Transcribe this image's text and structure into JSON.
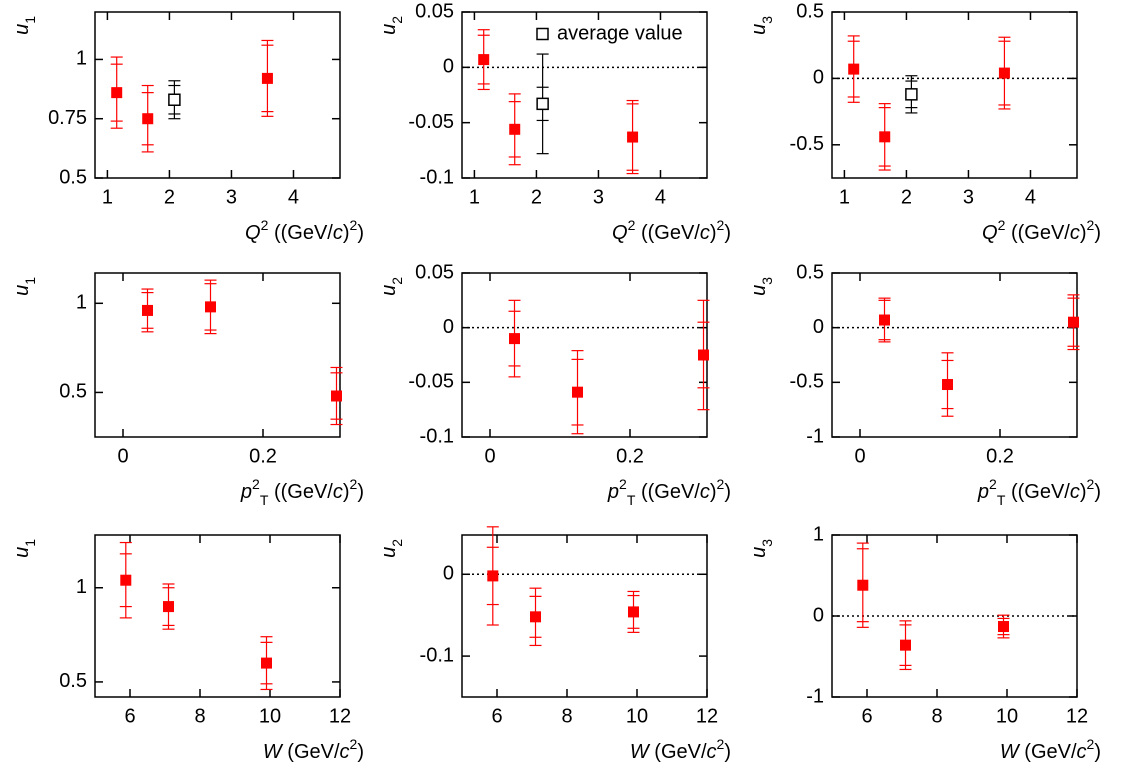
{
  "chart_data": [
    {
      "type": "errorbar",
      "xlabel": [
        [
          "Q",
          "i"
        ],
        [
          "2",
          "sup"
        ],
        [
          " ((GeV/",
          ""
        ],
        [
          "c",
          "i"
        ],
        [
          ")",
          ""
        ],
        [
          "2",
          "sup"
        ],
        [
          ")",
          ""
        ]
      ],
      "ylabel": [
        [
          "u",
          "i"
        ],
        [
          "1",
          "sub"
        ]
      ],
      "xlim": [
        0.8,
        4.75
      ],
      "ylim": [
        0.5,
        1.2
      ],
      "xticks": [
        1,
        2,
        3,
        4
      ],
      "yticks": [
        0.5,
        0.75,
        1
      ],
      "zero_line": false,
      "series": [
        {
          "color": "#ff0000",
          "marker": "filled",
          "x": [
            1.15,
            1.65,
            3.58
          ],
          "values": [
            0.86,
            0.75,
            0.92
          ],
          "stat_errors": [
            0.12,
            0.11,
            0.14
          ],
          "errors": [
            0.15,
            0.14,
            0.16
          ]
        },
        {
          "color": "#000000",
          "marker": "open",
          "x": [
            2.08
          ],
          "values": [
            0.83
          ],
          "stat_errors": [
            0.06
          ],
          "errors": [
            0.08
          ]
        }
      ]
    },
    {
      "type": "errorbar",
      "xlabel": [
        [
          "Q",
          "i"
        ],
        [
          "2",
          "sup"
        ],
        [
          " ((GeV/",
          ""
        ],
        [
          "c",
          "i"
        ],
        [
          ")",
          ""
        ],
        [
          "2",
          "sup"
        ],
        [
          ")",
          ""
        ]
      ],
      "ylabel": [
        [
          "u",
          "i"
        ],
        [
          "2",
          "sub"
        ]
      ],
      "xlim": [
        0.8,
        4.75
      ],
      "ylim": [
        -0.1,
        0.05
      ],
      "xticks": [
        1,
        2,
        3,
        4
      ],
      "yticks": [
        -0.1,
        -0.05,
        0,
        0.05
      ],
      "zero_line": true,
      "legend": "upper right",
      "series": [
        {
          "color": "#ff0000",
          "marker": "filled",
          "x": [
            1.15,
            1.65,
            3.55
          ],
          "values": [
            0.007,
            -0.056,
            -0.063
          ],
          "stat_errors": [
            0.022,
            0.025,
            0.03
          ],
          "errors": [
            0.027,
            0.032,
            0.033
          ]
        },
        {
          "name": "average value",
          "color": "#000000",
          "marker": "open",
          "x": [
            2.1
          ],
          "values": [
            -0.033
          ],
          "stat_errors": [
            0.015
          ],
          "errors": [
            0.045
          ]
        }
      ]
    },
    {
      "type": "errorbar",
      "xlabel": [
        [
          "Q",
          "i"
        ],
        [
          "2",
          "sup"
        ],
        [
          " ((GeV/",
          ""
        ],
        [
          "c",
          "i"
        ],
        [
          ")",
          ""
        ],
        [
          "2",
          "sup"
        ],
        [
          ")",
          ""
        ]
      ],
      "ylabel": [
        [
          "u",
          "i"
        ],
        [
          "3",
          "sub"
        ]
      ],
      "xlim": [
        0.8,
        4.75
      ],
      "ylim": [
        -0.75,
        0.5
      ],
      "xticks": [
        1,
        2,
        3,
        4
      ],
      "yticks": [
        -0.5,
        0,
        0.5
      ],
      "zero_line": true,
      "series": [
        {
          "color": "#ff0000",
          "marker": "filled",
          "x": [
            1.15,
            1.65,
            3.58
          ],
          "values": [
            0.07,
            -0.44,
            0.04
          ],
          "stat_errors": [
            0.21,
            0.22,
            0.24
          ],
          "errors": [
            0.25,
            0.25,
            0.27
          ]
        },
        {
          "color": "#000000",
          "marker": "open",
          "x": [
            2.08
          ],
          "values": [
            -0.12
          ],
          "stat_errors": [
            0.1
          ],
          "errors": [
            0.14
          ]
        }
      ]
    },
    {
      "type": "errorbar",
      "xlabel": [
        [
          "p",
          "i"
        ],
        [
          "2",
          "sup"
        ],
        [
          "T",
          "sub"
        ],
        [
          " ((GeV/",
          ""
        ],
        [
          "c",
          "i"
        ],
        [
          ")",
          ""
        ],
        [
          "2",
          "sup"
        ],
        [
          ")",
          ""
        ]
      ],
      "ylabel": [
        [
          "u",
          "i"
        ],
        [
          "1",
          "sub"
        ]
      ],
      "xlim": [
        -0.04,
        0.31
      ],
      "ylim": [
        0.25,
        1.17
      ],
      "xticks": [
        0,
        0.2
      ],
      "yticks": [
        0.5,
        1
      ],
      "zero_line": false,
      "series": [
        {
          "color": "#ff0000",
          "marker": "filled",
          "x": [
            0.035,
            0.125,
            0.305
          ],
          "values": [
            0.96,
            0.98,
            0.48
          ],
          "stat_errors": [
            0.1,
            0.13,
            0.13
          ],
          "errors": [
            0.12,
            0.15,
            0.16
          ]
        }
      ]
    },
    {
      "type": "errorbar",
      "xlabel": [
        [
          "p",
          "i"
        ],
        [
          "2",
          "sup"
        ],
        [
          "T",
          "sub"
        ],
        [
          " ((GeV/",
          ""
        ],
        [
          "c",
          "i"
        ],
        [
          ")",
          ""
        ],
        [
          "2",
          "sup"
        ],
        [
          ")",
          ""
        ]
      ],
      "ylabel": [
        [
          "u",
          "i"
        ],
        [
          "2",
          "sub"
        ]
      ],
      "xlim": [
        -0.04,
        0.31
      ],
      "ylim": [
        -0.1,
        0.05
      ],
      "xticks": [
        0,
        0.2
      ],
      "yticks": [
        -0.1,
        -0.05,
        0,
        0.05
      ],
      "zero_line": true,
      "series": [
        {
          "color": "#ff0000",
          "marker": "filled",
          "x": [
            0.035,
            0.125,
            0.305
          ],
          "values": [
            -0.01,
            -0.059,
            -0.025
          ],
          "stat_errors": [
            0.025,
            0.03,
            0.03
          ],
          "errors": [
            0.035,
            0.038,
            0.05
          ]
        }
      ]
    },
    {
      "type": "errorbar",
      "xlabel": [
        [
          "p",
          "i"
        ],
        [
          "2",
          "sup"
        ],
        [
          "T",
          "sub"
        ],
        [
          " ((GeV/",
          ""
        ],
        [
          "c",
          "i"
        ],
        [
          ")",
          ""
        ],
        [
          "2",
          "sup"
        ],
        [
          ")",
          ""
        ]
      ],
      "ylabel": [
        [
          "u",
          "i"
        ],
        [
          "3",
          "sub"
        ]
      ],
      "xlim": [
        -0.04,
        0.31
      ],
      "ylim": [
        -1,
        0.5
      ],
      "xticks": [
        0,
        0.2
      ],
      "yticks": [
        -1,
        -0.5,
        0,
        0.5
      ],
      "zero_line": true,
      "series": [
        {
          "color": "#ff0000",
          "marker": "filled",
          "x": [
            0.035,
            0.125,
            0.305
          ],
          "values": [
            0.07,
            -0.52,
            0.05
          ],
          "stat_errors": [
            0.18,
            0.22,
            0.22
          ],
          "errors": [
            0.2,
            0.29,
            0.25
          ]
        }
      ]
    },
    {
      "type": "errorbar",
      "xlabel": [
        [
          "W",
          "i"
        ],
        [
          " (GeV/",
          ""
        ],
        [
          "c",
          "i"
        ],
        [
          "2",
          "sup"
        ],
        [
          ")",
          ""
        ]
      ],
      "ylabel": [
        [
          "u",
          "i"
        ],
        [
          "1",
          "sub"
        ]
      ],
      "xlim": [
        5,
        12
      ],
      "ylim": [
        0.42,
        1.28
      ],
      "xticks": [
        6,
        8,
        10,
        12
      ],
      "yticks": [
        0.5,
        1
      ],
      "zero_line": false,
      "series": [
        {
          "color": "#ff0000",
          "marker": "filled",
          "x": [
            5.88,
            7.1,
            9.9
          ],
          "values": [
            1.04,
            0.9,
            0.6
          ],
          "stat_errors": [
            0.14,
            0.1,
            0.11
          ],
          "errors": [
            0.2,
            0.12,
            0.14
          ]
        }
      ]
    },
    {
      "type": "errorbar",
      "xlabel": [
        [
          "W",
          "i"
        ],
        [
          " (GeV/",
          ""
        ],
        [
          "c",
          "i"
        ],
        [
          "2",
          "sup"
        ],
        [
          ")",
          ""
        ]
      ],
      "ylabel": [
        [
          "u",
          "i"
        ],
        [
          "2",
          "sub"
        ]
      ],
      "xlim": [
        5,
        12
      ],
      "ylim": [
        -0.15,
        0.048
      ],
      "xticks": [
        6,
        8,
        10,
        12
      ],
      "yticks": [
        -0.1,
        0
      ],
      "zero_line": true,
      "series": [
        {
          "color": "#ff0000",
          "marker": "filled",
          "x": [
            5.88,
            7.1,
            9.9
          ],
          "values": [
            -0.002,
            -0.052,
            -0.046
          ],
          "stat_errors": [
            0.035,
            0.025,
            0.02
          ],
          "errors": [
            0.06,
            0.035,
            0.025
          ]
        }
      ]
    },
    {
      "type": "errorbar",
      "xlabel": [
        [
          "W",
          "i"
        ],
        [
          " (GeV/",
          ""
        ],
        [
          "c",
          "i"
        ],
        [
          "2",
          "sup"
        ],
        [
          ")",
          ""
        ]
      ],
      "ylabel": [
        [
          "u",
          "i"
        ],
        [
          "3",
          "sub"
        ]
      ],
      "xlim": [
        5,
        12
      ],
      "ylim": [
        -1,
        1
      ],
      "xticks": [
        6,
        8,
        10,
        12
      ],
      "yticks": [
        -1,
        0,
        1
      ],
      "zero_line": true,
      "series": [
        {
          "color": "#ff0000",
          "marker": "filled",
          "x": [
            5.88,
            7.1,
            9.9
          ],
          "values": [
            0.38,
            -0.36,
            -0.13
          ],
          "stat_errors": [
            0.45,
            0.25,
            0.1
          ],
          "errors": [
            0.52,
            0.3,
            0.14
          ]
        }
      ]
    }
  ]
}
